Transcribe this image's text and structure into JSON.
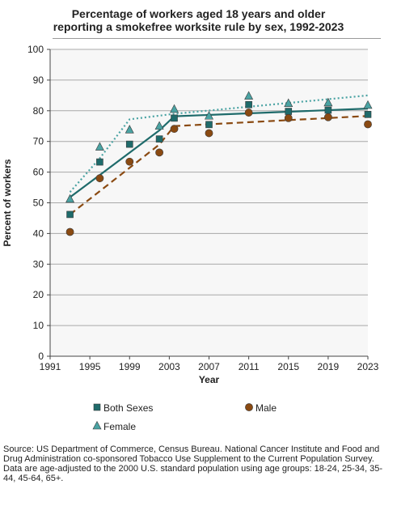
{
  "chart_data": {
    "type": "scatter",
    "title": "Percentage of workers aged 18 years and older\nreporting a smokefree worksite rule by sex, 1992-2023",
    "xlabel": "Year",
    "ylabel": "Percent of workers",
    "xlim": [
      1991,
      2023
    ],
    "ylim": [
      0,
      100
    ],
    "xticks": [
      1991,
      1995,
      1999,
      2003,
      2007,
      2011,
      2015,
      2019,
      2023
    ],
    "yticks": [
      0,
      10,
      20,
      30,
      40,
      50,
      60,
      70,
      80,
      90,
      100
    ],
    "grid": true,
    "legend_position": "bottom",
    "series": [
      {
        "name": "Both Sexes",
        "marker": "square",
        "color": "#1f6b6b",
        "line_style": "solid",
        "x": [
          1993,
          1996,
          1999,
          2002,
          2003.5,
          2007,
          2011,
          2015,
          2019,
          2023
        ],
        "values": [
          46.2,
          63.3,
          69.1,
          70.8,
          77.6,
          75.5,
          82.0,
          79.8,
          80.2,
          78.8
        ],
        "trend": {
          "x": [
            1993,
            2002,
            2003.5,
            2023
          ],
          "values": [
            51.8,
            73.6,
            78.2,
            80.7
          ]
        }
      },
      {
        "name": "Male",
        "marker": "circle",
        "color": "#8a4a12",
        "line_style": "dashed",
        "x": [
          1993,
          1996,
          1999,
          2002,
          2003.5,
          2007,
          2011,
          2015,
          2019,
          2023
        ],
        "values": [
          40.5,
          58.0,
          63.4,
          66.4,
          74.1,
          72.7,
          79.4,
          77.6,
          77.9,
          75.6
        ],
        "trend": {
          "x": [
            1993,
            2002,
            2003.5,
            2023
          ],
          "values": [
            46.2,
            69.0,
            75.0,
            78.3
          ]
        }
      },
      {
        "name": "Female",
        "marker": "triangle",
        "color": "#4aa3a3",
        "line_style": "dotted",
        "x": [
          1993,
          1996,
          1999,
          2002,
          2003.5,
          2007,
          2011,
          2015,
          2019,
          2023
        ],
        "values": [
          51.2,
          68.2,
          73.8,
          75.0,
          80.5,
          78.3,
          84.8,
          82.4,
          82.6,
          81.8
        ],
        "trend": {
          "x": [
            1993,
            1996,
            1999,
            2003.5,
            2023
          ],
          "values": [
            53.5,
            64.5,
            77.2,
            79.0,
            85.0
          ]
        }
      }
    ]
  },
  "source_note": [
    "Source: US Department of Commerce, Census Bureau. National Cancer Institute and Food and Drug Administration co-sponsored Tobacco Use Supplement to the Current Population Survey.",
    "Data are age-adjusted to the 2000 U.S. standard population using age groups: 18-24, 25-34, 35-44, 45-64, 65+."
  ],
  "colors": {
    "plot_background": "#f7f7f7",
    "grid": "#a8a8a8",
    "axis": "#444444",
    "marker_outline": "#3a3a3a"
  }
}
